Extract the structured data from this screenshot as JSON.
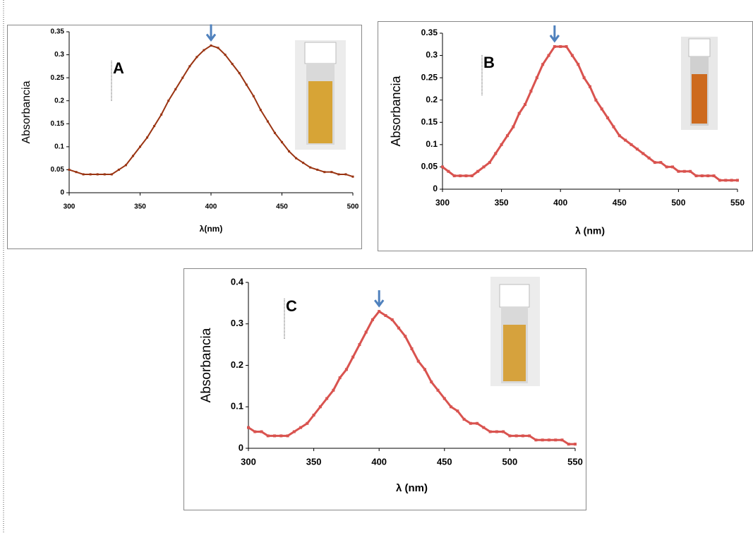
{
  "chart_data": [
    {
      "type": "line",
      "label": "A",
      "xlabel": "λ(nm)",
      "ylabel": "Absorbancia",
      "xlim": [
        300,
        500
      ],
      "xticks": [
        300,
        350,
        400,
        450,
        500
      ],
      "ylim": [
        0,
        0.35
      ],
      "yticks": [
        0,
        0.05,
        0.1,
        0.15,
        0.2,
        0.25,
        0.3,
        0.35
      ],
      "series": [
        {
          "color": "#9a3412",
          "x": [
            300,
            305,
            310,
            315,
            320,
            325,
            330,
            335,
            340,
            345,
            350,
            355,
            360,
            365,
            370,
            375,
            380,
            385,
            390,
            395,
            400,
            405,
            410,
            415,
            420,
            425,
            430,
            435,
            440,
            445,
            450,
            455,
            460,
            465,
            470,
            475,
            480,
            485,
            490,
            495,
            500
          ],
          "values": [
            0.05,
            0.045,
            0.04,
            0.04,
            0.04,
            0.04,
            0.04,
            0.05,
            0.06,
            0.08,
            0.1,
            0.12,
            0.145,
            0.17,
            0.2,
            0.225,
            0.25,
            0.275,
            0.295,
            0.31,
            0.32,
            0.315,
            0.3,
            0.28,
            0.26,
            0.235,
            0.21,
            0.18,
            0.155,
            0.13,
            0.11,
            0.09,
            0.075,
            0.065,
            0.055,
            0.05,
            0.045,
            0.045,
            0.04,
            0.04,
            0.035
          ]
        }
      ]
    },
    {
      "type": "line",
      "label": "B",
      "xlabel": "λ (nm)",
      "ylabel": "Absorbancia",
      "xlim": [
        300,
        550
      ],
      "xticks": [
        300,
        350,
        400,
        450,
        500,
        550
      ],
      "ylim": [
        0,
        0.35
      ],
      "yticks": [
        0,
        0.05,
        0.1,
        0.15,
        0.2,
        0.25,
        0.3,
        0.35
      ],
      "series": [
        {
          "color": "#d9534f",
          "x": [
            300,
            305,
            310,
            315,
            320,
            325,
            330,
            335,
            340,
            345,
            350,
            355,
            360,
            365,
            370,
            375,
            380,
            385,
            390,
            395,
            400,
            405,
            410,
            415,
            420,
            425,
            430,
            435,
            440,
            445,
            450,
            455,
            460,
            465,
            470,
            475,
            480,
            485,
            490,
            495,
            500,
            505,
            510,
            515,
            520,
            525,
            530,
            535,
            540,
            545,
            550
          ],
          "values": [
            0.05,
            0.04,
            0.03,
            0.03,
            0.03,
            0.03,
            0.04,
            0.05,
            0.06,
            0.08,
            0.1,
            0.12,
            0.14,
            0.17,
            0.19,
            0.22,
            0.25,
            0.28,
            0.3,
            0.32,
            0.32,
            0.32,
            0.3,
            0.28,
            0.25,
            0.23,
            0.2,
            0.18,
            0.16,
            0.14,
            0.12,
            0.11,
            0.1,
            0.09,
            0.08,
            0.07,
            0.06,
            0.06,
            0.05,
            0.05,
            0.04,
            0.04,
            0.04,
            0.03,
            0.03,
            0.03,
            0.03,
            0.02,
            0.02,
            0.02,
            0.02
          ]
        }
      ]
    },
    {
      "type": "line",
      "label": "C",
      "xlabel": "λ (nm)",
      "ylabel": "Absorbancia",
      "xlim": [
        300,
        550
      ],
      "xticks": [
        300,
        350,
        400,
        450,
        500,
        550
      ],
      "ylim": [
        0,
        0.4
      ],
      "yticks": [
        0,
        0.1,
        0.2,
        0.3,
        0.4
      ],
      "series": [
        {
          "color": "#d9534f",
          "x": [
            300,
            305,
            310,
            315,
            320,
            325,
            330,
            335,
            340,
            345,
            350,
            355,
            360,
            365,
            370,
            375,
            380,
            385,
            390,
            395,
            400,
            405,
            410,
            415,
            420,
            425,
            430,
            435,
            440,
            445,
            450,
            455,
            460,
            465,
            470,
            475,
            480,
            485,
            490,
            495,
            500,
            505,
            510,
            515,
            520,
            525,
            530,
            535,
            540,
            545,
            550
          ],
          "values": [
            0.05,
            0.04,
            0.04,
            0.03,
            0.03,
            0.03,
            0.03,
            0.04,
            0.05,
            0.06,
            0.08,
            0.1,
            0.12,
            0.14,
            0.17,
            0.19,
            0.22,
            0.25,
            0.28,
            0.31,
            0.33,
            0.32,
            0.31,
            0.29,
            0.27,
            0.24,
            0.21,
            0.19,
            0.16,
            0.14,
            0.12,
            0.1,
            0.09,
            0.07,
            0.06,
            0.06,
            0.05,
            0.04,
            0.04,
            0.04,
            0.03,
            0.03,
            0.03,
            0.03,
            0.02,
            0.02,
            0.02,
            0.02,
            0.02,
            0.01,
            0.01
          ]
        }
      ]
    }
  ]
}
